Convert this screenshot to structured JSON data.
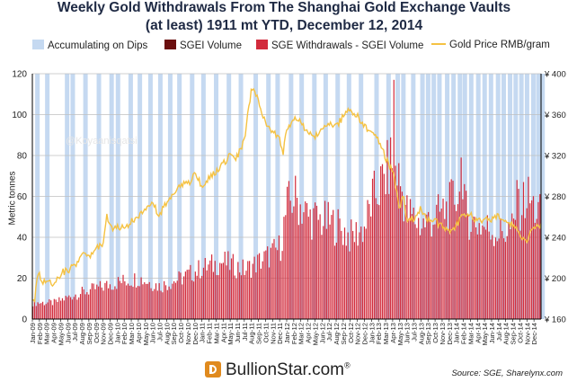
{
  "chart_data": {
    "type": "bar",
    "title_line1": "Weekly Gold Withdrawals From The Shanghai Gold Exchange Vaults",
    "title_line2": "(at least) 1911 mt YTD, December 12, 2014",
    "ylabel": "Metric tonnes",
    "ylim": [
      0,
      120
    ],
    "yticks": [
      "0",
      "20",
      "40",
      "60",
      "80",
      "100",
      "120"
    ],
    "y2lim": [
      160,
      400
    ],
    "y2ticks": [
      "¥ 160",
      "¥ 200",
      "¥ 240",
      "¥ 280",
      "¥ 320",
      "¥ 360",
      "¥ 400"
    ],
    "xticks": [
      "Jan-09",
      "Feb-09",
      "Mar-09",
      "Apr-09",
      "May-09",
      "Jun-09",
      "Jul-09",
      "Aug-09",
      "Sep-09",
      "Oct-09",
      "Nov-09",
      "Dec-09",
      "Jan-10",
      "Feb-10",
      "Mar-10",
      "Apr-10",
      "May-10",
      "Jun-10",
      "Jul-10",
      "Aug-10",
      "Sep-10",
      "Oct-10",
      "Nov-10",
      "Dec-10",
      "Jan-11",
      "Feb-11",
      "Mar-11",
      "Apr-11",
      "May-11",
      "Jun-11",
      "Jul-11",
      "Aug-11",
      "Sep-11",
      "Oct-11",
      "Nov-11",
      "Dec-11",
      "Jan-12",
      "Feb-12",
      "Mar-12",
      "Apr-12",
      "May-12",
      "Jun-12",
      "Jul-12",
      "Aug-12",
      "Sep-12",
      "Oct-12",
      "Nov-12",
      "Dec-12",
      "Jan-13",
      "Feb-13",
      "Mar-13",
      "Apr-13",
      "May-13",
      "Jun-13",
      "Jul-13",
      "Aug-13",
      "Sep-13",
      "Oct-13",
      "Nov-13",
      "Dec-13",
      "Jan-14",
      "Feb-14",
      "Mar-14",
      "Apr-14",
      "May-14",
      "Jun-14",
      "Jul-14",
      "Aug-14",
      "Sep-14",
      "Oct-14",
      "Nov-14",
      "Dec-14"
    ],
    "legend": [
      {
        "label": "Accumulating on Dips",
        "color": "#c5d9f1",
        "kind": "area"
      },
      {
        "label": "SGEI Volume",
        "color": "#6b0f0f",
        "kind": "bar"
      },
      {
        "label": "SGE Withdrawals - SGEI Volume",
        "color": "#d22b3c",
        "kind": "bar"
      },
      {
        "label": "Gold Price RMB/gram",
        "color": "#f5c242",
        "kind": "line"
      }
    ],
    "withdrawal_anchors": [
      [
        0,
        8
      ],
      [
        3,
        8
      ],
      [
        6,
        12
      ],
      [
        9,
        15
      ],
      [
        12,
        18
      ],
      [
        15,
        20
      ],
      [
        18,
        16
      ],
      [
        21,
        20
      ],
      [
        24,
        25
      ],
      [
        27,
        28
      ],
      [
        30,
        24
      ],
      [
        33,
        30
      ],
      [
        35,
        35
      ],
      [
        36,
        55
      ],
      [
        37,
        60
      ],
      [
        39,
        50
      ],
      [
        41,
        48
      ],
      [
        43,
        46
      ],
      [
        45,
        40
      ],
      [
        47,
        45
      ],
      [
        48,
        58
      ],
      [
        50,
        70
      ],
      [
        51,
        80
      ],
      [
        53,
        52
      ],
      [
        55,
        46
      ],
      [
        57,
        50
      ],
      [
        59,
        55
      ],
      [
        60,
        62
      ],
      [
        62,
        48
      ],
      [
        64,
        45
      ],
      [
        66,
        42
      ],
      [
        68,
        44
      ],
      [
        69,
        55
      ],
      [
        70,
        60
      ],
      [
        71,
        54
      ],
      [
        72,
        50
      ]
    ],
    "price_anchors": [
      [
        0,
        182
      ],
      [
        0.3,
        178
      ],
      [
        0.7,
        200
      ],
      [
        1,
        205
      ],
      [
        1.5,
        195
      ],
      [
        2,
        200
      ],
      [
        3,
        192
      ],
      [
        4,
        205
      ],
      [
        5,
        208
      ],
      [
        6,
        212
      ],
      [
        7,
        225
      ],
      [
        8,
        222
      ],
      [
        9,
        228
      ],
      [
        10,
        235
      ],
      [
        10.5,
        262
      ],
      [
        11,
        252
      ],
      [
        11.5,
        245
      ],
      [
        12,
        252
      ],
      [
        13,
        248
      ],
      [
        14,
        255
      ],
      [
        15,
        262
      ],
      [
        16,
        265
      ],
      [
        17,
        272
      ],
      [
        18,
        262
      ],
      [
        19,
        275
      ],
      [
        20,
        280
      ],
      [
        21,
        292
      ],
      [
        22,
        292
      ],
      [
        23,
        302
      ],
      [
        24,
        290
      ],
      [
        25,
        298
      ],
      [
        26,
        305
      ],
      [
        27,
        312
      ],
      [
        28,
        320
      ],
      [
        29,
        318
      ],
      [
        30,
        335
      ],
      [
        31,
        385
      ],
      [
        32,
        375
      ],
      [
        33,
        352
      ],
      [
        34,
        342
      ],
      [
        35,
        338
      ],
      [
        35.5,
        322
      ],
      [
        36,
        345
      ],
      [
        37,
        355
      ],
      [
        38,
        352
      ],
      [
        39,
        342
      ],
      [
        40,
        338
      ],
      [
        41,
        348
      ],
      [
        42,
        352
      ],
      [
        43,
        348
      ],
      [
        44,
        358
      ],
      [
        45,
        365
      ],
      [
        46,
        358
      ],
      [
        47,
        348
      ],
      [
        48,
        343
      ],
      [
        49,
        335
      ],
      [
        50,
        318
      ],
      [
        51,
        305
      ],
      [
        52,
        268
      ],
      [
        52.5,
        282
      ],
      [
        53,
        255
      ],
      [
        54,
        258
      ],
      [
        55,
        268
      ],
      [
        56,
        258
      ],
      [
        57,
        255
      ],
      [
        58,
        252
      ],
      [
        59,
        245
      ],
      [
        60,
        252
      ],
      [
        61,
        262
      ],
      [
        62,
        262
      ],
      [
        63,
        255
      ],
      [
        64,
        258
      ],
      [
        65,
        258
      ],
      [
        66,
        260
      ],
      [
        67,
        258
      ],
      [
        68,
        252
      ],
      [
        69,
        242
      ],
      [
        70,
        238
      ],
      [
        71,
        248
      ],
      [
        72,
        250
      ]
    ],
    "accumulating_on_dips_months": [
      0.4,
      1.8,
      4.6,
      5.4,
      7.2,
      9.1,
      10.9,
      11.8,
      13.6,
      14.9,
      16.4,
      17.8,
      19.2,
      20.5,
      22.3,
      23.9,
      25.7,
      27.5,
      29.2,
      31.3,
      33.1,
      34.4,
      36.3,
      37.8,
      39.6,
      41.2,
      42.9,
      44.5,
      46.2,
      48.4,
      50.1,
      51.4,
      52.2,
      53.6,
      54.9,
      55.7,
      56.5,
      57.3,
      58.4,
      59.3,
      60.2,
      60.9,
      61.8,
      62.8,
      63.7,
      64.6,
      65.6,
      66.4,
      67.3,
      68.1,
      68.9,
      69.7,
      70.6,
      71.3,
      71.9
    ],
    "watermark": "@Koyaanisqatsi",
    "source": "Source: SGE, Sharelynx.com",
    "logo": "BullionStar.com",
    "logo_reg": "®"
  }
}
